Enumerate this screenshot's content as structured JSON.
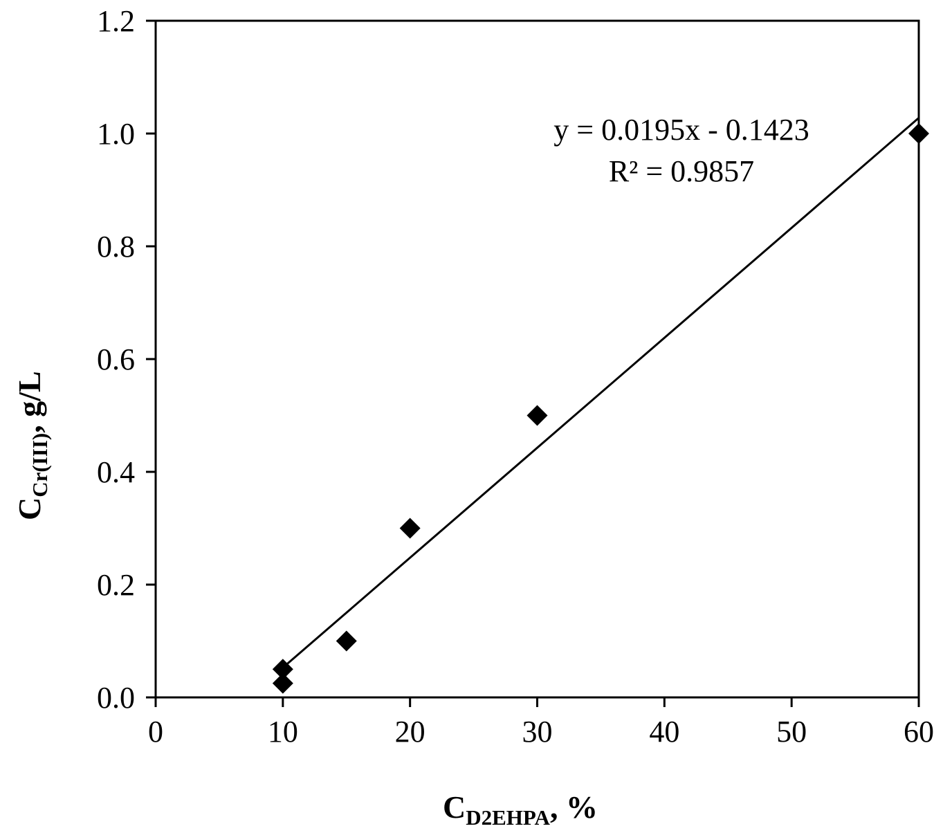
{
  "chart_data": {
    "type": "scatter",
    "title": "",
    "xlabel": "C_D2EHPA, %",
    "ylabel": "C_Cr(III), g/L",
    "xlabel_parts": {
      "main": "C",
      "sub": "D2EHPA",
      "suffix": ", %"
    },
    "ylabel_parts": {
      "main": "C",
      "sub": "Cr(III)",
      "suffix": ", g/L"
    },
    "xlim": [
      0,
      60
    ],
    "ylim": [
      0.0,
      1.2
    ],
    "x_ticks": [
      0,
      10,
      20,
      30,
      40,
      50,
      60
    ],
    "y_ticks": [
      0.0,
      0.2,
      0.4,
      0.6,
      0.8,
      1.0,
      1.2
    ],
    "x_tick_labels": [
      "0",
      "10",
      "20",
      "30",
      "40",
      "50",
      "60"
    ],
    "y_tick_labels": [
      "0.0",
      "0.2",
      "0.4",
      "0.6",
      "0.8",
      "1.0",
      "1.2"
    ],
    "grid": false,
    "legend": null,
    "marker": "diamond",
    "marker_color": "#000000",
    "series": [
      {
        "name": "data",
        "x": [
          10,
          10,
          15,
          20,
          30,
          60
        ],
        "y": [
          0.025,
          0.05,
          0.1,
          0.3,
          0.5,
          1.0
        ]
      }
    ],
    "trendline": {
      "type": "linear",
      "slope": 0.0195,
      "intercept": -0.1423,
      "x_range": [
        10,
        60
      ],
      "r_squared": 0.9857,
      "equation_label": "y = 0.0195x - 0.1423",
      "r2_label": "R² = 0.9857"
    }
  }
}
